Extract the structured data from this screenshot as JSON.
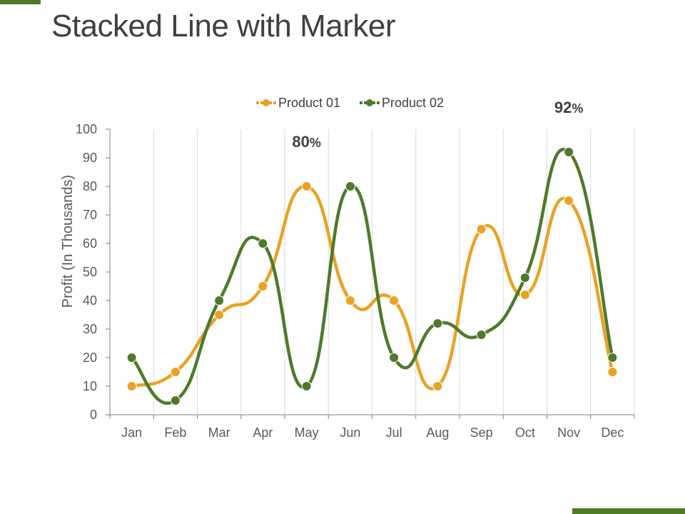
{
  "slide": {
    "title": "Stacked Line with Marker",
    "accent_color": "#4f7a28"
  },
  "chart_data": {
    "type": "line",
    "smooth": true,
    "markers": true,
    "categories": [
      "Jan",
      "Feb",
      "Mar",
      "Apr",
      "May",
      "Jun",
      "Jul",
      "Aug",
      "Sep",
      "Oct",
      "Nov",
      "Dec"
    ],
    "series": [
      {
        "name": "Product 01",
        "color": "#e9a224",
        "values": [
          10,
          15,
          35,
          45,
          80,
          40,
          40,
          10,
          65,
          42,
          75,
          15
        ]
      },
      {
        "name": "Product 02",
        "color": "#4e7a2a",
        "values": [
          20,
          5,
          40,
          60,
          10,
          80,
          20,
          32,
          28,
          48,
          92,
          20
        ]
      }
    ],
    "ylabel": "Profit (In Thousands)",
    "xlabel": "",
    "ylim": [
      0,
      100
    ],
    "ystep": 10,
    "grid": "vertical",
    "legend": "top-center",
    "annotations": [
      {
        "value": "80",
        "suffix": "%",
        "category": "May",
        "series": "Product 01"
      },
      {
        "value": "92",
        "suffix": "%",
        "category": "Nov",
        "series": "Product 02"
      }
    ]
  }
}
